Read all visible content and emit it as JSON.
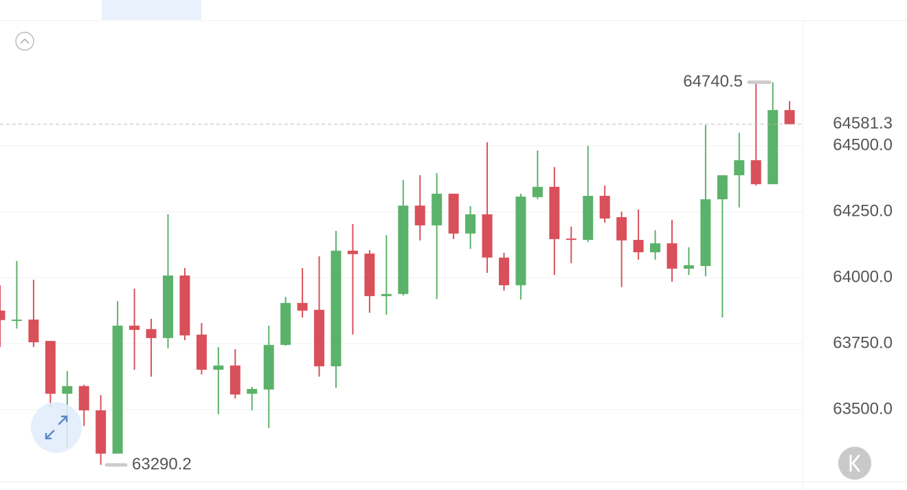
{
  "chart_data": {
    "type": "candlestick",
    "up_color": "#5bb26a",
    "down_color": "#d9505a",
    "open": [
      63875,
      63836,
      63841,
      63760,
      63560,
      63589,
      63497,
      63333,
      63818,
      63805,
      63771,
      64008,
      63784,
      63651,
      63667,
      63560,
      63576,
      63745,
      63904,
      63878,
      63664,
      64102,
      64091,
      63930,
      63938,
      64273,
      64198,
      64318,
      64167,
      64240,
      64076,
      63971,
      64305,
      64344,
      64148,
      64143,
      64310,
      64229,
      64143,
      64096,
      64130,
      64034,
      64044,
      64297,
      64388,
      64445,
      64354,
      64635
    ],
    "high": [
      63971,
      64063,
      63992,
      63760,
      63646,
      63594,
      63555,
      63911,
      63958,
      63844,
      64240,
      64036,
      63828,
      63737,
      63729,
      63586,
      63818,
      63927,
      64036,
      64081,
      64177,
      64203,
      64104,
      64161,
      64370,
      64388,
      64396,
      64318,
      64271,
      64513,
      64094,
      64318,
      64482,
      64419,
      64193,
      64500,
      64349,
      64250,
      64258,
      64180,
      64219,
      64115,
      64578,
      64388,
      64549,
      64740.5,
      64740,
      64669
    ],
    "low": [
      63737,
      63807,
      63737,
      63508,
      63354,
      63438,
      63290.2,
      63333,
      63651,
      63625,
      63732,
      63763,
      63633,
      63482,
      63542,
      63497,
      63430,
      63742,
      63849,
      63625,
      63583,
      63784,
      63867,
      63859,
      63932,
      64141,
      63919,
      64146,
      64109,
      64018,
      63951,
      63917,
      64297,
      64010,
      64055,
      64135,
      64208,
      63964,
      64068,
      64068,
      63984,
      64010,
      64005,
      63849,
      64266,
      64349,
      64354,
      64581.3
    ],
    "close": [
      63839,
      63841,
      63755,
      63560,
      63589,
      63497,
      63333,
      63818,
      63802,
      63771,
      64008,
      63781,
      63651,
      63667,
      63557,
      63578,
      63745,
      63904,
      63875,
      63664,
      64102,
      64089,
      63930,
      63938,
      64273,
      64198,
      64318,
      64167,
      64240,
      64076,
      63971,
      64307,
      64344,
      64146,
      64143,
      64310,
      64224,
      64141,
      64096,
      64130,
      64034,
      64047,
      64297,
      64388,
      64445,
      64354,
      64635,
      64581.3
    ],
    "ylim": [
      63229,
      64974
    ],
    "yticks": [
      {
        "value": 63500,
        "label": "63500.0"
      },
      {
        "value": 63750,
        "label": "63750.0"
      },
      {
        "value": 64000,
        "label": "64000.0"
      },
      {
        "value": 64250,
        "label": "64250.0"
      },
      {
        "value": 64500,
        "label": "64500.0"
      }
    ],
    "grid": true,
    "max_marker": 64740.5,
    "min_marker": 63290.2,
    "last_price": 64581.3,
    "last_price_color": "#e0707a"
  }
}
